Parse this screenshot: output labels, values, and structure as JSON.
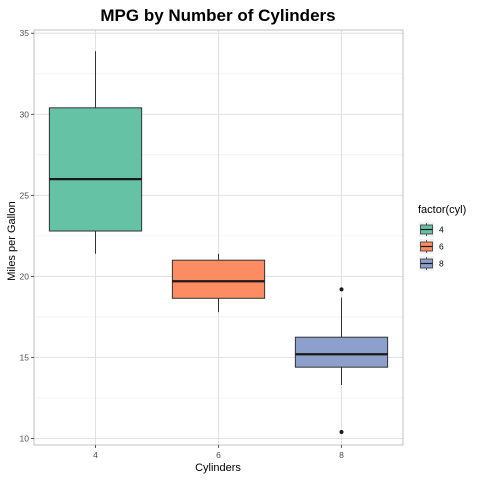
{
  "chart_data": {
    "type": "boxplot",
    "title": "MPG by Number of Cylinders",
    "xlabel": "Cylinders",
    "ylabel": "Miles per Gallon",
    "ylim": [
      9.6,
      35.2
    ],
    "yticks": [
      10,
      15,
      20,
      25,
      30,
      35
    ],
    "ytick_labels": [
      "10",
      "15",
      "20",
      "25",
      "30",
      "35"
    ],
    "grid": true,
    "legend": {
      "title": "factor(cyl)",
      "placement": "right"
    },
    "categories": [
      "4",
      "6",
      "8"
    ],
    "series": [
      {
        "name": "4",
        "color": "#66C2A5",
        "min": 21.4,
        "q1": 22.8,
        "median": 26.0,
        "q3": 30.4,
        "max": 33.9,
        "outliers": []
      },
      {
        "name": "6",
        "color": "#FC8D62",
        "min": 17.8,
        "q1": 18.65,
        "median": 19.7,
        "q3": 21.0,
        "max": 21.4,
        "outliers": []
      },
      {
        "name": "8",
        "color": "#8DA0CB",
        "min": 13.3,
        "q1": 14.4,
        "median": 15.2,
        "q3": 16.25,
        "max": 18.7,
        "outliers": [
          10.4,
          19.2
        ]
      }
    ]
  }
}
